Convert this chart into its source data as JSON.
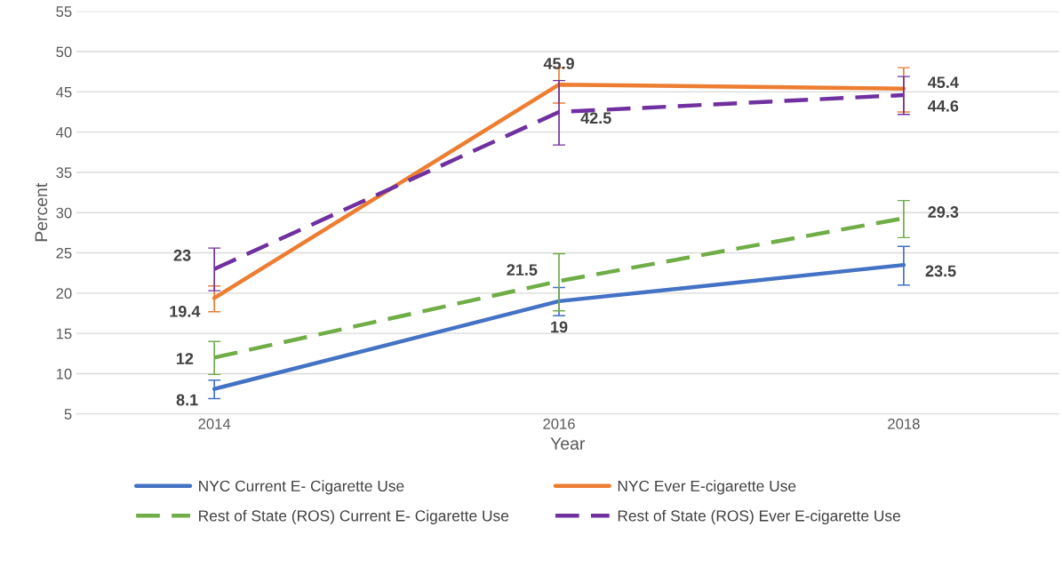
{
  "chart_data": {
    "type": "line",
    "xlabel": "Year",
    "ylabel": "Percent",
    "categories": [
      "2014",
      "2016",
      "2018"
    ],
    "ylim": [
      5,
      55
    ],
    "yticks": [
      5,
      10,
      15,
      20,
      25,
      30,
      35,
      40,
      45,
      50,
      55
    ],
    "grid": "y",
    "legend": "bottom",
    "marker": "none",
    "data_labels": true,
    "series": [
      {
        "name": "NYC Current E- Cigarette Use",
        "color": "#4472c4",
        "line_style": "solid",
        "values": [
          8.1,
          19,
          23.5
        ],
        "errors": [
          [
            6.9,
            9.2
          ],
          [
            17.2,
            20.7
          ],
          [
            21.0,
            25.8
          ]
        ]
      },
      {
        "name": "NYC Ever E-cigarette Use",
        "color": "#ed7d31",
        "line_style": "solid",
        "values": [
          19.4,
          45.9,
          45.4
        ],
        "errors": [
          [
            17.7,
            20.9
          ],
          [
            43.6,
            48.0
          ],
          [
            42.5,
            48.0
          ]
        ]
      },
      {
        "name": "Rest of State (ROS) Current E- Cigarette Use",
        "color": "#70ad47",
        "line_style": "dashed",
        "values": [
          12,
          21.5,
          29.3
        ],
        "errors": [
          [
            9.9,
            14.0
          ],
          [
            17.8,
            24.9
          ],
          [
            26.9,
            31.5
          ]
        ]
      },
      {
        "name": "Rest of State (ROS) Ever E-cigarette Use",
        "color": "#7030a0",
        "line_style": "dashed",
        "values": [
          23,
          42.5,
          44.6
        ],
        "errors": [
          [
            20.3,
            25.6
          ],
          [
            38.4,
            46.4
          ],
          [
            42.2,
            46.9
          ]
        ]
      }
    ]
  }
}
